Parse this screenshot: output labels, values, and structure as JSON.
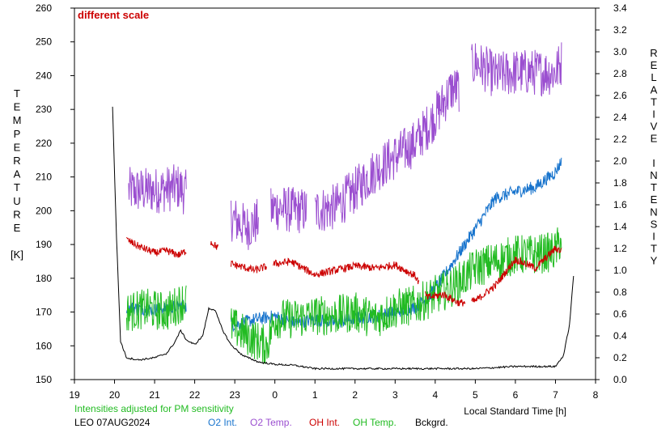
{
  "chart_data": {
    "type": "line",
    "annotation": "different scale",
    "xlabel": "Local Standard Time [h]",
    "ylabel_left": [
      "T",
      "E",
      "M",
      "P",
      "E",
      "R",
      "A",
      "T",
      "U",
      "R",
      "E",
      "",
      "[K]"
    ],
    "ylabel_right": [
      "R",
      "E",
      "L",
      "A",
      "T",
      "I",
      "V",
      "E",
      "",
      "I",
      "N",
      "T",
      "E",
      "N",
      "S",
      "I",
      "T",
      "Y"
    ],
    "x_ticks": [
      "19",
      "20",
      "21",
      "22",
      "23",
      "0",
      "1",
      "2",
      "3",
      "4",
      "5",
      "6",
      "7",
      "8"
    ],
    "x_range": [
      19,
      32
    ],
    "y_left_ticks": [
      "150",
      "160",
      "170",
      "180",
      "190",
      "200",
      "210",
      "220",
      "230",
      "240",
      "250",
      "260"
    ],
    "y_left_range": [
      150,
      260
    ],
    "y_right_ticks": [
      "0.0",
      "0.2",
      "0.4",
      "0.6",
      "0.8",
      "1.0",
      "1.2",
      "1.4",
      "1.6",
      "1.8",
      "2.0",
      "2.2",
      "2.4",
      "2.6",
      "2.8",
      "3.0",
      "3.2",
      "3.4"
    ],
    "y_right_range": [
      0,
      3.4
    ],
    "footnote": "Intensities adjusted for PM sensitivity",
    "station_date": "LEO 07AUG2024",
    "legend": [
      {
        "label": "O2 Int.",
        "color": "#1874cd"
      },
      {
        "label": "O2 Temp.",
        "color": "#9b4fd0"
      },
      {
        "label": "OH Int.",
        "color": "#cc0000"
      },
      {
        "label": "OH Temp.",
        "color": "#22bb22"
      },
      {
        "label": "Bckgrd.",
        "color": "#000000"
      }
    ],
    "series": [
      {
        "name": "O2 Temp.",
        "axis": "left",
        "color": "#9b4fd0",
        "noise": 7,
        "gaps": [
          [
            21.8,
            22.9
          ],
          [
            23.6,
            23.9
          ],
          [
            24.8,
            25.0
          ],
          [
            28.6,
            28.9
          ]
        ],
        "x": [
          20.35,
          21.0,
          21.6,
          21.8,
          22.9,
          23.3,
          23.6,
          24.0,
          24.5,
          25.0,
          25.5,
          26.0,
          26.5,
          27.0,
          27.5,
          28.0,
          28.4,
          28.6,
          29.0,
          29.5,
          30.0,
          30.5,
          31.0,
          31.15
        ],
        "y": [
          206,
          206,
          207,
          205,
          198,
          195,
          197,
          201,
          200,
          200,
          201,
          206,
          212,
          216,
          220,
          228,
          236,
          236,
          244,
          240,
          241,
          241,
          241,
          244
        ]
      },
      {
        "name": "O2 Int.",
        "axis": "right",
        "color": "#1874cd",
        "noise": 0.06,
        "gaps": [
          [
            21.8,
            22.9
          ]
        ],
        "x": [
          20.3,
          21.0,
          21.7,
          23.0,
          23.5,
          24.0,
          24.5,
          25.0,
          25.5,
          26.0,
          26.5,
          27.0,
          27.5,
          27.8,
          28.2,
          28.6,
          29.0,
          29.5,
          30.0,
          30.5,
          31.0,
          31.15
        ],
        "y": [
          0.66,
          0.64,
          0.68,
          0.5,
          0.55,
          0.58,
          0.52,
          0.55,
          0.52,
          0.56,
          0.58,
          0.62,
          0.66,
          0.74,
          0.94,
          1.16,
          1.38,
          1.66,
          1.72,
          1.76,
          1.9,
          2.0
        ]
      },
      {
        "name": "OH Temp.",
        "axis": "left",
        "color": "#22bb22",
        "noise": 6,
        "gaps": [
          [
            21.8,
            22.9
          ]
        ],
        "x": [
          20.3,
          20.8,
          21.3,
          21.8,
          22.9,
          23.3,
          23.8,
          24.0,
          24.5,
          25.0,
          25.5,
          26.0,
          26.5,
          27.0,
          27.5,
          28.0,
          28.5,
          29.0,
          29.5,
          30.0,
          30.5,
          31.0,
          31.15
        ],
        "y": [
          170,
          171,
          170,
          174,
          166,
          163,
          160,
          168,
          168,
          169,
          169,
          170,
          168,
          171,
          172,
          175,
          178,
          183,
          185,
          187,
          187,
          188,
          192
        ]
      },
      {
        "name": "OH Int.",
        "axis": "right",
        "color": "#cc0000",
        "noise": 0.035,
        "gaps": [
          [
            21.8,
            22.4
          ],
          [
            22.6,
            22.9
          ],
          [
            23.8,
            23.95
          ],
          [
            27.6,
            27.75
          ],
          [
            28.75,
            28.9
          ]
        ],
        "x": [
          20.3,
          20.6,
          21.0,
          21.3,
          21.6,
          21.8,
          22.4,
          22.6,
          22.9,
          23.5,
          24.0,
          24.4,
          25.0,
          25.5,
          26.0,
          26.5,
          27.0,
          27.5,
          27.8,
          28.2,
          28.6,
          29.0,
          29.5,
          30.0,
          30.5,
          31.0,
          31.15
        ],
        "y": [
          1.28,
          1.22,
          1.16,
          1.18,
          1.14,
          1.18,
          1.26,
          1.2,
          1.06,
          1.0,
          1.06,
          1.08,
          0.96,
          1.0,
          1.04,
          1.02,
          1.05,
          0.95,
          0.75,
          0.78,
          0.7,
          0.72,
          0.86,
          1.1,
          1.02,
          1.2,
          1.18
        ]
      },
      {
        "name": "Bckgrd.",
        "axis": "right",
        "color": "#000000",
        "noise": 0.008,
        "gaps": [],
        "x": [
          19.95,
          20.05,
          20.15,
          20.3,
          20.6,
          21.0,
          21.3,
          21.5,
          21.65,
          21.8,
          22.0,
          22.2,
          22.35,
          22.5,
          22.7,
          22.9,
          23.2,
          23.6,
          24.0,
          24.5,
          25.0,
          26.0,
          27.0,
          28.0,
          29.0,
          30.0,
          31.0,
          31.2,
          31.35,
          31.45
        ],
        "y": [
          2.5,
          1.3,
          0.35,
          0.2,
          0.18,
          0.2,
          0.24,
          0.34,
          0.45,
          0.36,
          0.32,
          0.4,
          0.65,
          0.64,
          0.45,
          0.32,
          0.22,
          0.16,
          0.14,
          0.13,
          0.1,
          0.1,
          0.1,
          0.1,
          0.1,
          0.12,
          0.12,
          0.22,
          0.5,
          0.95
        ]
      }
    ]
  }
}
